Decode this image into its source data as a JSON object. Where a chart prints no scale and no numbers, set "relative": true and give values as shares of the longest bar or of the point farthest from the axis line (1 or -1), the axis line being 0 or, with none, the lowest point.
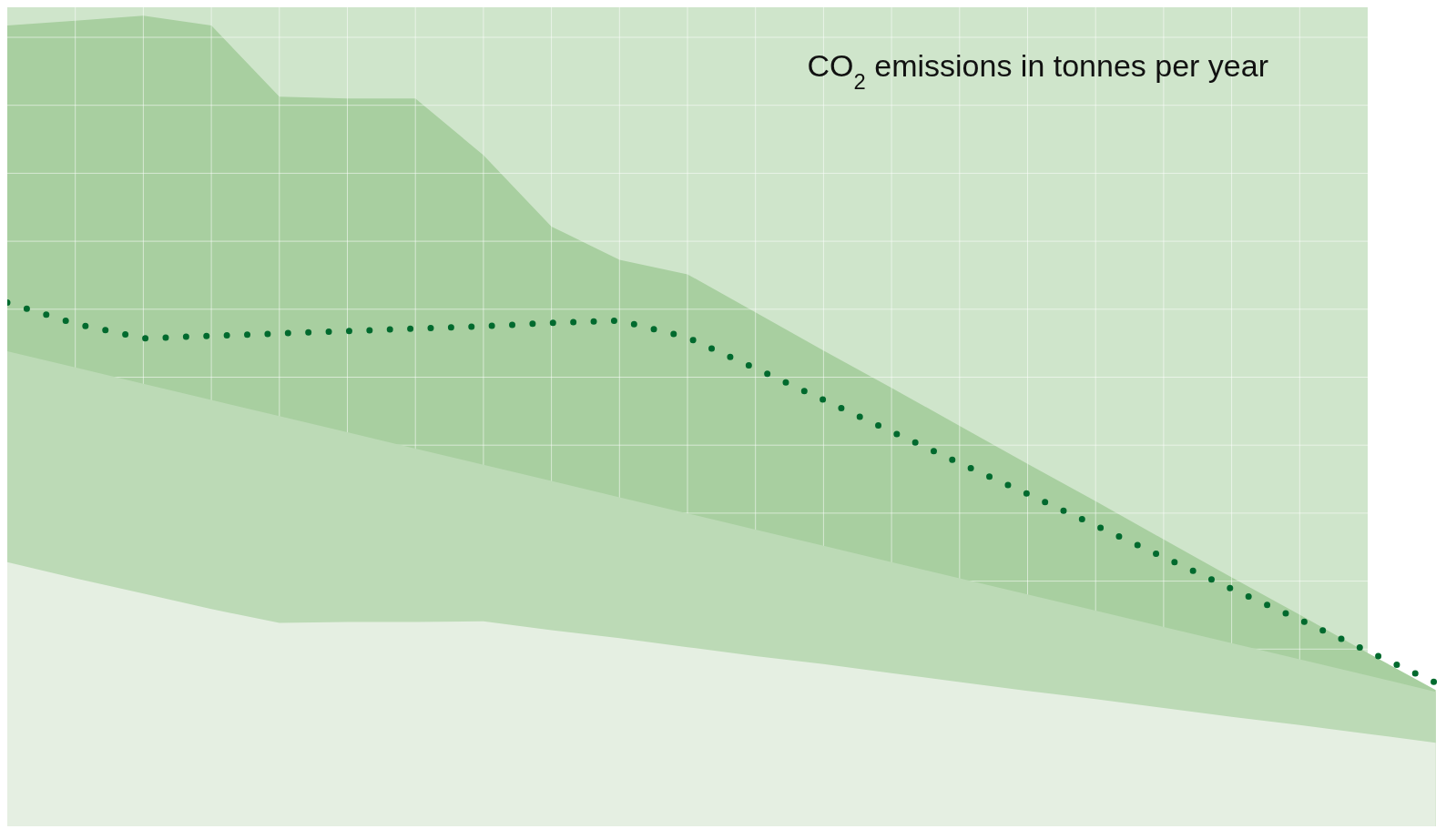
{
  "chart_data": {
    "type": "area",
    "title": "CO$_{2}$ emissions in tonnes per year",
    "relative": true,
    "grid": true,
    "categories": [
      null,
      null,
      null,
      null,
      null,
      null,
      null,
      null,
      null,
      null,
      null,
      null,
      null,
      null,
      null,
      null,
      null,
      null,
      null,
      null,
      null,
      null
    ],
    "series": [
      {
        "color": "#a8cfa0",
        "values": [
          0.988,
          0.994,
          1,
          0.988,
          0.9,
          0.898,
          0.898,
          0.828,
          0.74,
          0.699,
          0.681,
          0.634,
          0.587,
          0.541,
          0.494,
          0.447,
          0.401,
          0.354,
          0.307,
          0.261,
          0.214,
          0.168
        ]
      },
      {
        "color": "#bcdab6",
        "values": [
          0.586,
          0.566,
          0.546,
          0.526,
          0.506,
          0.486,
          0.466,
          0.446,
          0.426,
          0.406,
          0.386,
          0.366,
          0.346,
          0.326,
          0.306,
          0.286,
          0.266,
          0.246,
          0.226,
          0.206,
          0.186,
          0.166
        ]
      },
      {
        "color": "#e5efe2",
        "values": [
          0.326,
          0.306,
          0.287,
          0.268,
          0.251,
          0.252,
          0.252,
          0.253,
          0.242,
          0.232,
          0.221,
          0.21,
          0.2,
          0.189,
          0.178,
          0.167,
          0.157,
          0.146,
          0.135,
          0.125,
          0.114,
          0.103
        ]
      },
      {
        "type": "line",
        "line_style": "dotted",
        "color": "#006a2e",
        "values": [
          0.646,
          0.62,
          0.602,
          0.605,
          0.608,
          0.611,
          0.614,
          0.617,
          0.621,
          0.624,
          0.603,
          0.565,
          0.526,
          0.487,
          0.448,
          0.41,
          0.371,
          0.332,
          0.293,
          0.255,
          0.216,
          0.177
        ]
      }
    ]
  }
}
